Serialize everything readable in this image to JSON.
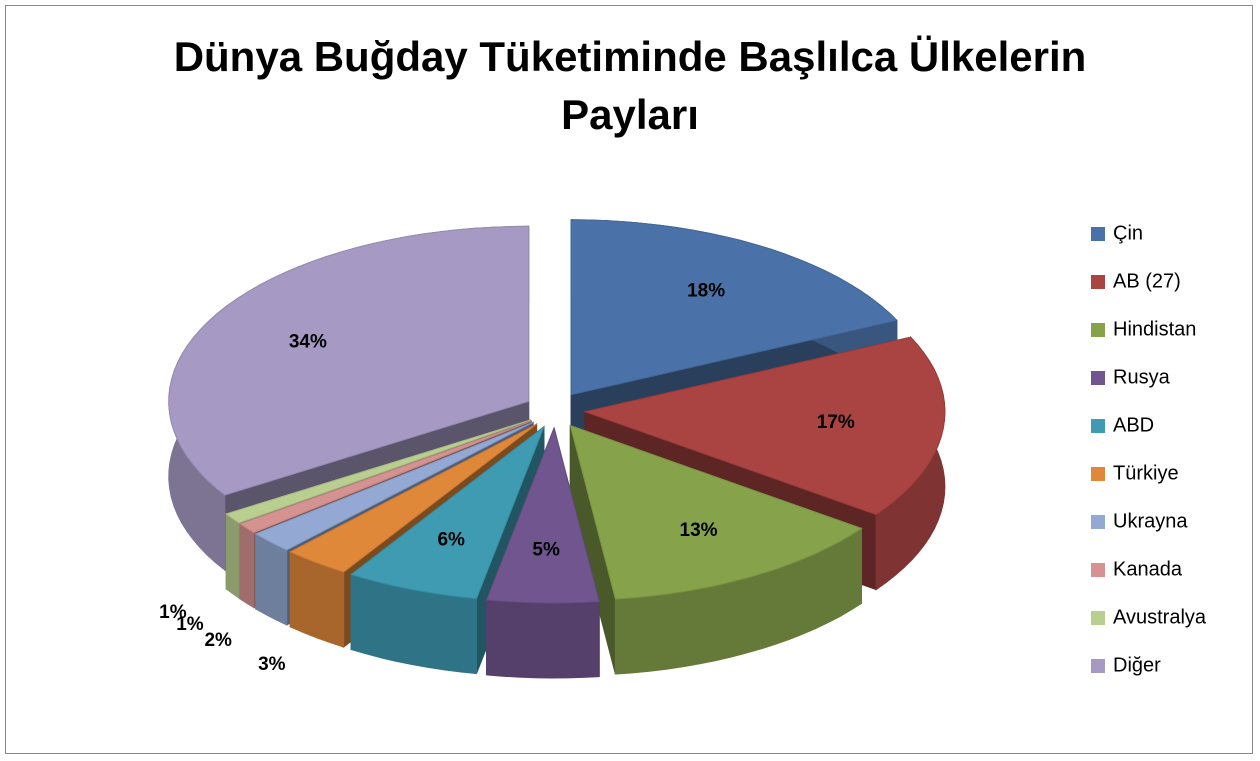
{
  "chart_data": {
    "type": "pie3d",
    "title": "Dünya Buğday Tüketiminde Başlılca Ülkelerin Payları",
    "categories": [
      "Çin",
      "AB (27)",
      "Hindistan",
      "Rusya",
      "ABD",
      "Türkiye",
      "Ukrayna",
      "Kanada",
      "Avustralya",
      "Diğer"
    ],
    "values": [
      18,
      17,
      13,
      5,
      6,
      3,
      2,
      1,
      1,
      34
    ],
    "value_labels": [
      "18%",
      "17%",
      "13%",
      "5%",
      "6%",
      "3%",
      "2%",
      "1%",
      "1%",
      "34%"
    ],
    "colors": [
      "#4a72a8",
      "#a94442",
      "#86a24a",
      "#70558f",
      "#3e9bb2",
      "#e0883a",
      "#93a9d3",
      "#d49390",
      "#b9cf8f",
      "#a69ac4"
    ],
    "legend": "right"
  }
}
